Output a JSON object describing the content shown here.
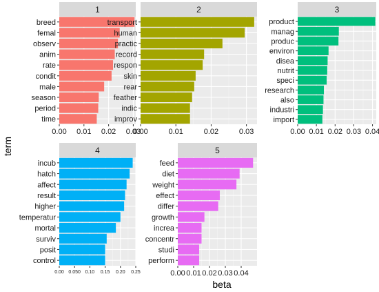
{
  "chart_data": {
    "type": "bar",
    "orientation": "horizontal",
    "facet": true,
    "xlabel": "beta",
    "ylabel": "term",
    "grid": true,
    "panels": [
      {
        "title": "1",
        "color": "#F8766D",
        "xlim": [
          0,
          0.031
        ],
        "xticks": [
          0.0,
          0.01,
          0.02,
          0.03
        ],
        "xtick_labels": [
          "0.00",
          "0.01",
          "0.02",
          "0.03"
        ],
        "categories": [
          "breed",
          "femal",
          "observ",
          "anim",
          "rate",
          "condit",
          "male",
          "season",
          "period",
          "time"
        ],
        "values": [
          0.0305,
          0.0245,
          0.0238,
          0.0225,
          0.0218,
          0.0212,
          0.0182,
          0.016,
          0.0158,
          0.0152
        ]
      },
      {
        "title": "2",
        "color": "#A3A500",
        "xlim": [
          0,
          0.033
        ],
        "xticks": [
          0.0,
          0.01,
          0.02,
          0.03
        ],
        "xtick_labels": [
          "0.00",
          "0.01",
          "0.02",
          "0.03"
        ],
        "categories": [
          "transport",
          "human",
          "practic",
          "record",
          "respon",
          "skin",
          "rear",
          "feather",
          "indic",
          "improv"
        ],
        "values": [
          0.0322,
          0.0295,
          0.0232,
          0.018,
          0.0176,
          0.0156,
          0.0152,
          0.0146,
          0.014,
          0.014
        ]
      },
      {
        "title": "3",
        "color": "#00BF7D",
        "xlim": [
          0,
          0.042
        ],
        "xticks": [
          0.0,
          0.01,
          0.02,
          0.03,
          0.04
        ],
        "xtick_labels": [
          "0.00",
          "0.01",
          "0.02",
          "0.03",
          "0.04"
        ],
        "categories": [
          "product",
          "manag",
          "produc",
          "environ",
          "disea",
          "nutrit",
          "speci",
          "research",
          "also",
          "industri",
          "import"
        ],
        "values": [
          0.0415,
          0.022,
          0.0218,
          0.0165,
          0.016,
          0.0158,
          0.0155,
          0.014,
          0.0138,
          0.0135,
          0.0132
        ]
      },
      {
        "title": "4",
        "color": "#00B0F6",
        "xlim": [
          0,
          0.25
        ],
        "xticks": [
          0.0,
          0.05,
          0.1,
          0.15,
          0.2,
          0.25
        ],
        "xtick_labels": [
          "0.00",
          "0.050",
          "0.10",
          "0.15",
          "0.20",
          "0.25"
        ],
        "categories": [
          "incub",
          "hatch",
          "affect",
          "result",
          "higher",
          "temperatur",
          "mortal",
          "surviv",
          "posit",
          "control"
        ],
        "values": [
          0.24,
          0.23,
          0.22,
          0.215,
          0.212,
          0.2,
          0.185,
          0.155,
          0.15,
          0.15
        ]
      },
      {
        "title": "5",
        "color": "#E76BF3",
        "xlim": [
          0,
          0.05
        ],
        "xticks": [
          0.0,
          0.01,
          0.02,
          0.03,
          0.04
        ],
        "xtick_labels": [
          "0.00",
          "0.01",
          "0.02",
          "0.03",
          "0.04"
        ],
        "categories": [
          "feed",
          "diet",
          "weight",
          "effect",
          "differ",
          "growth",
          "increa",
          "concentr",
          "studi",
          "perform"
        ],
        "values": [
          0.0475,
          0.039,
          0.037,
          0.0265,
          0.0255,
          0.0168,
          0.015,
          0.015,
          0.0135,
          0.0135
        ]
      }
    ]
  }
}
